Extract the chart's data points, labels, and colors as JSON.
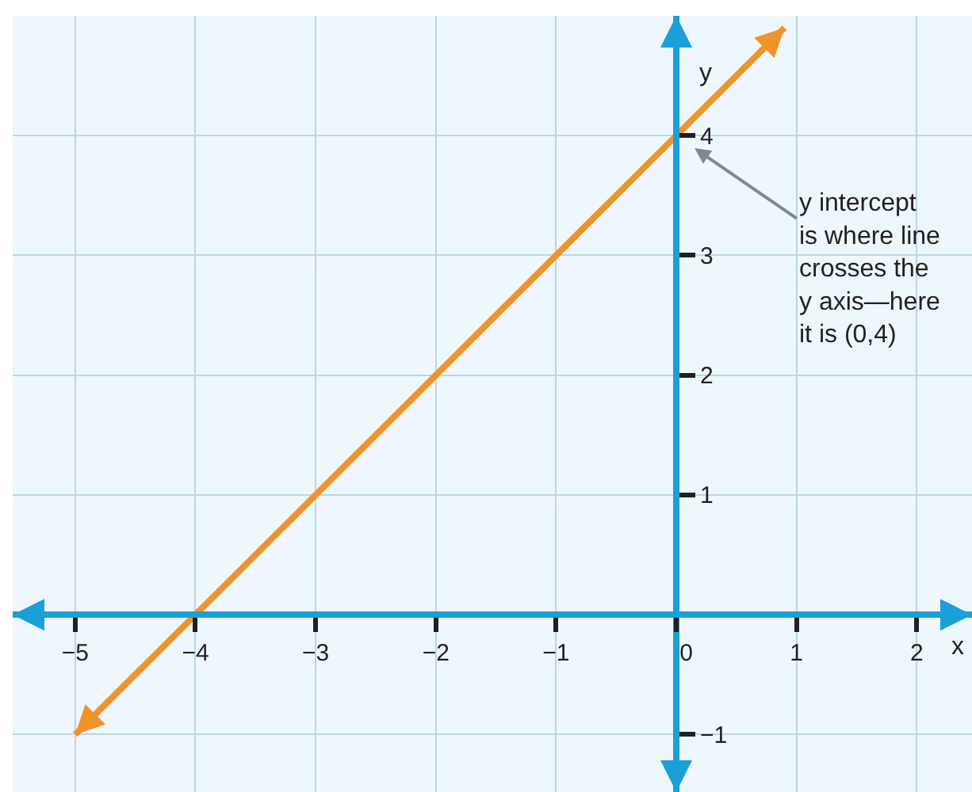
{
  "chart_data": {
    "type": "line",
    "xlabel": "x",
    "ylabel": "y",
    "x": [
      -5,
      -4,
      0,
      0.9
    ],
    "series": [
      {
        "color": "#f0932b",
        "values": [
          -1,
          0,
          4,
          4.9
        ]
      }
    ],
    "xlim": [
      -5.52,
      2.46
    ],
    "ylim": [
      -1.48,
      5.0
    ],
    "xticks": [
      {
        "value": -5,
        "label": "−5"
      },
      {
        "value": -4,
        "label": "−4"
      },
      {
        "value": -3,
        "label": "−3"
      },
      {
        "value": -2,
        "label": "−2"
      },
      {
        "value": -1,
        "label": "−1"
      },
      0,
      1,
      2
    ],
    "yticks": [
      {
        "value": -1,
        "label": "−1"
      },
      1,
      2,
      3,
      4
    ],
    "grid": true,
    "annotations": [
      {
        "text": "y intercept\nis where line\ncrosses the\ny axis—here\nit is (0,4)",
        "x": 0,
        "y": 4
      }
    ]
  }
}
